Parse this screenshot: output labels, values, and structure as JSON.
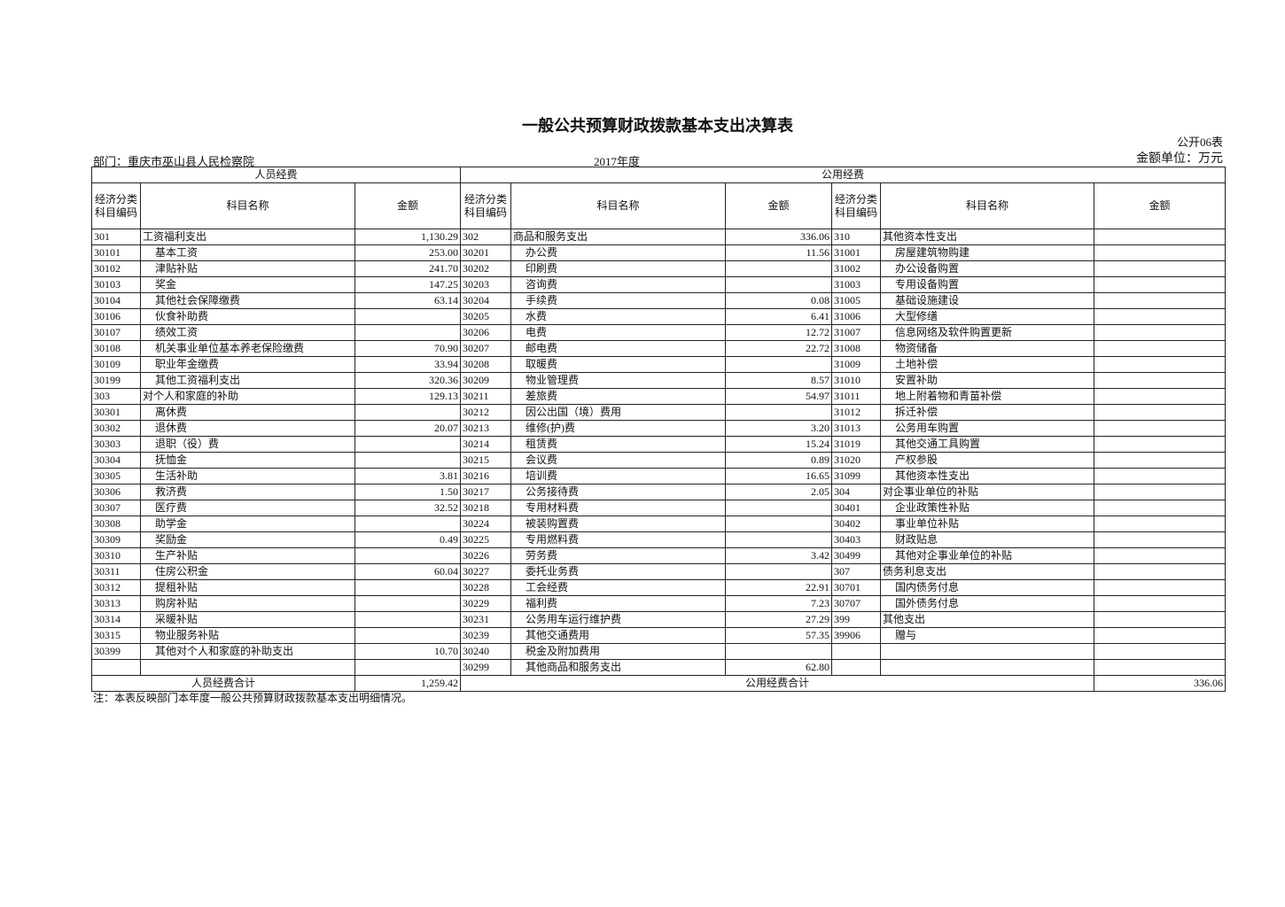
{
  "header": {
    "title": "一般公共预算财政拨款基本支出决算表",
    "form_no": "公开06表",
    "department": "部门：重庆市巫山县人民检察院",
    "year": "2017年度",
    "unit": "金额单位：万元"
  },
  "table": {
    "groups": [
      "人员经费",
      "公用经费"
    ],
    "columns": [
      "经济分类科目编码",
      "科目名称",
      "金额",
      "经济分类科目编码",
      "科目名称",
      "金额",
      "经济分类科目编码",
      "科目名称",
      "金额"
    ],
    "rows": [
      [
        "301",
        "工资福利支出",
        "1,130.29",
        "302",
        "商品和服务支出",
        "336.06",
        "310",
        "其他资本性支出",
        null
      ],
      [
        "30101",
        "基本工资",
        "253.00",
        "30201",
        "办公费",
        "11.56",
        "31001",
        "房屋建筑物购建",
        null
      ],
      [
        "30102",
        "津贴补贴",
        "241.70",
        "30202",
        "印刷费",
        null,
        "31002",
        "办公设备购置",
        null
      ],
      [
        "30103",
        "奖金",
        "147.25",
        "30203",
        "咨询费",
        null,
        "31003",
        "专用设备购置",
        null
      ],
      [
        "30104",
        "其他社会保障缴费",
        "63.14",
        "30204",
        "手续费",
        "0.08",
        "31005",
        "基础设施建设",
        null
      ],
      [
        "30106",
        "伙食补助费",
        null,
        "30205",
        "水费",
        "6.41",
        "31006",
        "大型修缮",
        null
      ],
      [
        "30107",
        "绩效工资",
        null,
        "30206",
        "电费",
        "12.72",
        "31007",
        "信息网络及软件购置更新",
        null
      ],
      [
        "30108",
        "机关事业单位基本养老保险缴费",
        "70.90",
        "30207",
        "邮电费",
        "22.72",
        "31008",
        "物资储备",
        null
      ],
      [
        "30109",
        "职业年金缴费",
        "33.94",
        "30208",
        "取暖费",
        null,
        "31009",
        "土地补偿",
        null
      ],
      [
        "30199",
        "其他工资福利支出",
        "320.36",
        "30209",
        "物业管理费",
        "8.57",
        "31010",
        "安置补助",
        null
      ],
      [
        "303",
        "对个人和家庭的补助",
        "129.13",
        "30211",
        "差旅费",
        "54.97",
        "31011",
        "地上附着物和青苗补偿",
        null
      ],
      [
        "30301",
        "离休费",
        null,
        "30212",
        "因公出国（境）费用",
        null,
        "31012",
        "拆迁补偿",
        null
      ],
      [
        "30302",
        "退休费",
        "20.07",
        "30213",
        "维修(护)费",
        "3.20",
        "31013",
        "公务用车购置",
        null
      ],
      [
        "30303",
        "退职（役）费",
        null,
        "30214",
        "租赁费",
        "15.24",
        "31019",
        "其他交通工具购置",
        null
      ],
      [
        "30304",
        "抚恤金",
        null,
        "30215",
        "会议费",
        "0.89",
        "31020",
        "产权参股",
        null
      ],
      [
        "30305",
        "生活补助",
        "3.81",
        "30216",
        "培训费",
        "16.65",
        "31099",
        "其他资本性支出",
        null
      ],
      [
        "30306",
        "救济费",
        "1.50",
        "30217",
        "公务接待费",
        "2.05",
        "304",
        "对企事业单位的补贴",
        null
      ],
      [
        "30307",
        "医疗费",
        "32.52",
        "30218",
        "专用材料费",
        null,
        "30401",
        "企业政策性补贴",
        null
      ],
      [
        "30308",
        "助学金",
        null,
        "30224",
        "被装购置费",
        null,
        "30402",
        "事业单位补贴",
        null
      ],
      [
        "30309",
        "奖励金",
        "0.49",
        "30225",
        "专用燃料费",
        null,
        "30403",
        "财政贴息",
        null
      ],
      [
        "30310",
        "生产补贴",
        null,
        "30226",
        "劳务费",
        "3.42",
        "30499",
        "其他对企事业单位的补贴",
        null
      ],
      [
        "30311",
        "住房公积金",
        "60.04",
        "30227",
        "委托业务费",
        null,
        "307",
        "债务利息支出",
        null
      ],
      [
        "30312",
        "提租补贴",
        null,
        "30228",
        "工会经费",
        "22.91",
        "30701",
        "国内债务付息",
        null
      ],
      [
        "30313",
        "购房补贴",
        null,
        "30229",
        "福利费",
        "7.23",
        "30707",
        "国外债务付息",
        null
      ],
      [
        "30314",
        "采暖补贴",
        null,
        "30231",
        "公务用车运行维护费",
        "27.29",
        "399",
        "其他支出",
        null
      ],
      [
        "30315",
        "物业服务补贴",
        null,
        "30239",
        "其他交通费用",
        "57.35",
        "39906",
        "赠与",
        null
      ],
      [
        "30399",
        "其他对个人和家庭的补助支出",
        "10.70",
        "30240",
        "税金及附加费用",
        null,
        null,
        null,
        null
      ],
      [
        null,
        null,
        null,
        "30299",
        "其他商品和服务支出",
        "62.80",
        null,
        null,
        null
      ]
    ],
    "totals": {
      "personnel_label": "人员经费合计",
      "personnel_amount": "1,259.42",
      "public_label": "公用经费合计",
      "public_amount": "336.06"
    }
  },
  "note": "注：本表反映部门本年度一般公共预算财政拨款基本支出明细情况。"
}
